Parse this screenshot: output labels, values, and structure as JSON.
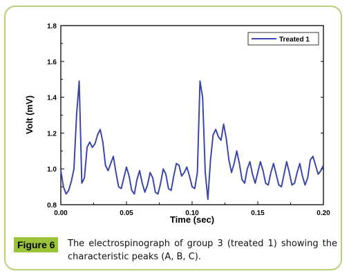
{
  "figure": {
    "label": "Figure 6",
    "caption": "The electrospinograph of group 3 (treated 1) showing the characteristic peaks (A, B, C)."
  },
  "colors": {
    "border": "#b6d07a",
    "badge": "#9bc33a",
    "series": "#3a47a8"
  },
  "chart_data": {
    "type": "line",
    "xlabel": "Time (sec)",
    "ylabel": "Volt (mV)",
    "xlim": [
      0.0,
      0.2
    ],
    "ylim": [
      0.8,
      1.8
    ],
    "x_ticks": [
      "0.00",
      "0.05",
      "0.10",
      "0.15",
      "0.20"
    ],
    "y_ticks": [
      "0.8",
      "1.0",
      "1.2",
      "1.4",
      "1.6",
      "1.8"
    ],
    "legend": "top-right",
    "grid": false,
    "series": [
      {
        "name": "Treated 1",
        "x": [
          0.0,
          0.002,
          0.004,
          0.006,
          0.008,
          0.01,
          0.012,
          0.014,
          0.016,
          0.018,
          0.02,
          0.022,
          0.024,
          0.026,
          0.028,
          0.03,
          0.032,
          0.034,
          0.036,
          0.038,
          0.04,
          0.042,
          0.044,
          0.046,
          0.048,
          0.05,
          0.052,
          0.054,
          0.056,
          0.058,
          0.06,
          0.062,
          0.064,
          0.066,
          0.068,
          0.07,
          0.072,
          0.074,
          0.076,
          0.078,
          0.08,
          0.082,
          0.084,
          0.086,
          0.088,
          0.09,
          0.092,
          0.094,
          0.096,
          0.098,
          0.1,
          0.102,
          0.104,
          0.106,
          0.108,
          0.11,
          0.112,
          0.114,
          0.116,
          0.118,
          0.12,
          0.122,
          0.124,
          0.126,
          0.128,
          0.13,
          0.132,
          0.134,
          0.136,
          0.138,
          0.14,
          0.142,
          0.144,
          0.146,
          0.148,
          0.15,
          0.152,
          0.154,
          0.156,
          0.158,
          0.16,
          0.162,
          0.164,
          0.166,
          0.168,
          0.17,
          0.172,
          0.174,
          0.176,
          0.178,
          0.18,
          0.182,
          0.184,
          0.186,
          0.188,
          0.19,
          0.192,
          0.194,
          0.196,
          0.198,
          0.2
        ],
        "values": [
          0.99,
          0.9,
          0.86,
          0.88,
          0.93,
          1.0,
          1.3,
          1.49,
          0.92,
          0.95,
          1.12,
          1.15,
          1.12,
          1.14,
          1.19,
          1.22,
          1.15,
          1.02,
          0.99,
          1.03,
          1.07,
          0.98,
          0.9,
          0.89,
          0.95,
          1.01,
          0.96,
          0.88,
          0.86,
          0.94,
          0.99,
          0.92,
          0.87,
          0.91,
          0.98,
          0.95,
          0.87,
          0.86,
          0.92,
          1.0,
          0.97,
          0.89,
          0.88,
          0.96,
          1.03,
          1.02,
          0.96,
          0.98,
          1.01,
          0.96,
          0.9,
          0.89,
          0.98,
          1.49,
          1.4,
          0.98,
          0.83,
          1.05,
          1.19,
          1.22,
          1.18,
          1.16,
          1.25,
          1.17,
          1.05,
          0.98,
          1.03,
          1.1,
          1.03,
          0.94,
          0.92,
          1.0,
          1.04,
          0.97,
          0.92,
          0.98,
          1.04,
          0.99,
          0.92,
          0.91,
          0.98,
          1.03,
          0.97,
          0.91,
          0.9,
          0.97,
          1.04,
          0.98,
          0.91,
          0.92,
          0.98,
          1.03,
          0.96,
          0.91,
          0.95,
          1.05,
          1.07,
          1.02,
          0.97,
          0.99,
          1.02
        ]
      }
    ]
  }
}
